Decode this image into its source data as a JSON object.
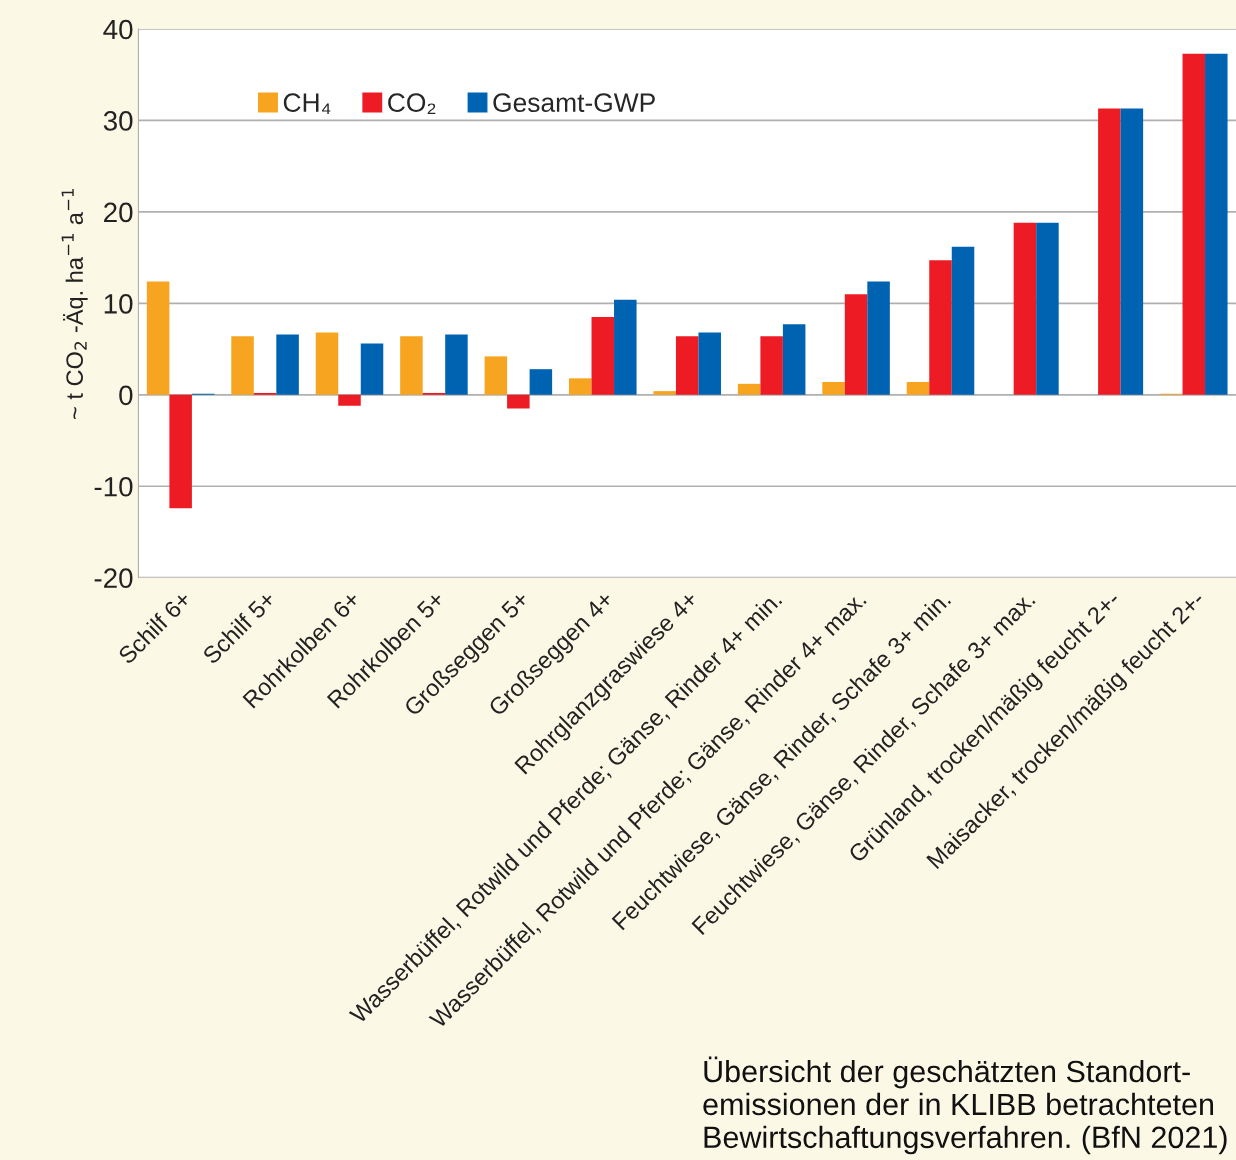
{
  "chart_data": {
    "type": "bar",
    "ylabel": "~ t CO$_{2}$ -Äq. ha$^{−1}$ a$^{−1}$",
    "categories": [
      "Schilf 6+",
      "Schilf 5+",
      "Rohrkolben 6+",
      "Rohrkolben 5+",
      "Großseggen 5+",
      "Großseggen 4+",
      "Rohrglanzgraswiese 4+",
      "Wasserbüffel, Rotwild und Pferde; Gänse, Rinder 4+ min.",
      "Wasserbüffel, Rotwild und Pferde; Gänse, Rinder 4+ max.",
      "Feuchtwiese, Gänse, Rinder, Schafe 3+ min.",
      "Feuchtwiese, Gänse, Rinder, Schafe 3+ max.",
      "Grünland, trocken/mäßig feucht 2+-",
      "Maisacker, trocken/mäßig feucht 2+-"
    ],
    "series": [
      {
        "name": "CH₄",
        "color": "#f7a520",
        "values": [
          12.4,
          6.4,
          6.8,
          6.4,
          4.2,
          1.8,
          0.4,
          1.2,
          1.4,
          1.4,
          null,
          null,
          0.1
        ]
      },
      {
        "name": "CO₂",
        "color": "#ed1c24",
        "values": [
          -12.4,
          0.2,
          -1.2,
          0.2,
          -1.5,
          8.5,
          6.4,
          6.4,
          11.0,
          14.7,
          18.8,
          31.3,
          37.3
        ]
      },
      {
        "name": "Gesamt-GWP",
        "color": "#0063b1",
        "values": [
          0.1,
          6.6,
          5.6,
          6.6,
          2.8,
          10.4,
          6.8,
          7.7,
          12.4,
          16.2,
          18.8,
          31.3,
          37.3
        ]
      }
    ],
    "ylim": [
      -20,
      40
    ],
    "yticks": [
      -20,
      -10,
      0,
      10,
      20,
      30,
      40
    ],
    "grid": "y",
    "legend": "top left",
    "annotations": [
      "Übersicht der geschätzten Standort-\nemissionen der in KLIBB betrachteten\nBewirtschaftungsverfahren. (BfN 2021)"
    ]
  }
}
